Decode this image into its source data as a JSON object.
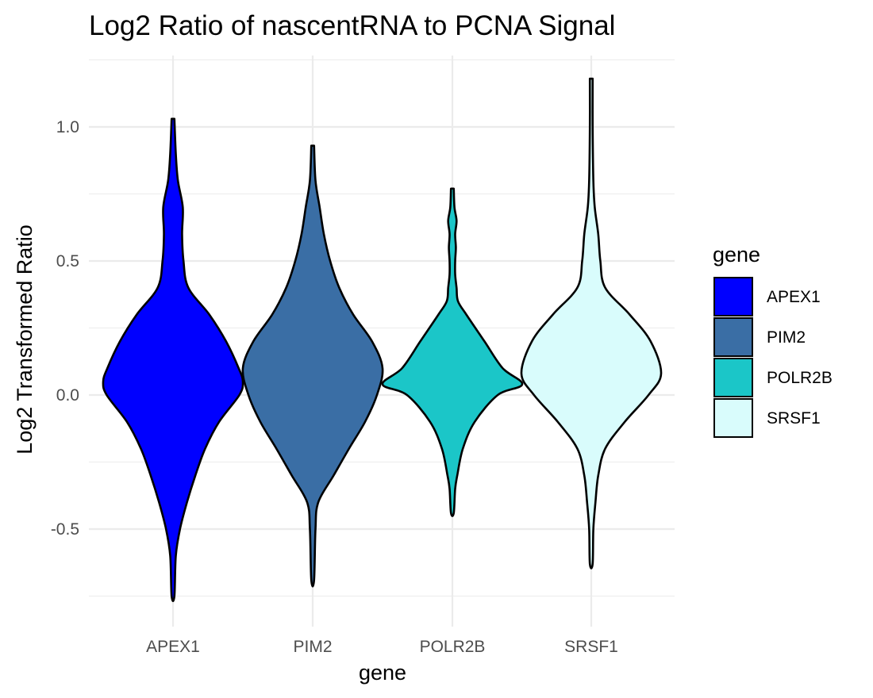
{
  "chart_data": {
    "type": "violin",
    "title": "Log2 Ratio of nascentRNA to PCNA Signal",
    "xlabel": "gene",
    "ylabel": "Log2 Transformed Ratio",
    "ylim": [
      -0.82,
      1.26
    ],
    "yticks": [
      -0.5,
      0.0,
      0.5,
      1.0
    ],
    "ytick_labels": [
      "-0.5",
      "0.0",
      "0.5",
      "1.0"
    ],
    "grid": true,
    "legend": {
      "title": "gene",
      "placement": "right"
    },
    "categories": [
      "APEX1",
      "PIM2",
      "POLR2B",
      "SRSF1"
    ],
    "series": [
      {
        "name": "APEX1",
        "color": "#0000ff",
        "min": -0.75,
        "max": 1.03,
        "density": [
          [
            -0.75,
            0.02
          ],
          [
            -0.6,
            0.04
          ],
          [
            -0.5,
            0.1
          ],
          [
            -0.4,
            0.2
          ],
          [
            -0.3,
            0.32
          ],
          [
            -0.2,
            0.46
          ],
          [
            -0.1,
            0.66
          ],
          [
            0.0,
            0.95
          ],
          [
            0.05,
            1.0
          ],
          [
            0.1,
            0.94
          ],
          [
            0.2,
            0.76
          ],
          [
            0.3,
            0.52
          ],
          [
            0.4,
            0.22
          ],
          [
            0.5,
            0.15
          ],
          [
            0.6,
            0.13
          ],
          [
            0.7,
            0.14
          ],
          [
            0.8,
            0.07
          ],
          [
            0.9,
            0.04
          ],
          [
            1.03,
            0.02
          ]
        ]
      },
      {
        "name": "PIM2",
        "color": "#3a6ea5",
        "min": -0.69,
        "max": 0.93,
        "density": [
          [
            -0.69,
            0.02
          ],
          [
            -0.5,
            0.04
          ],
          [
            -0.4,
            0.08
          ],
          [
            -0.3,
            0.3
          ],
          [
            -0.2,
            0.52
          ],
          [
            -0.1,
            0.75
          ],
          [
            0.0,
            0.92
          ],
          [
            0.1,
            1.0
          ],
          [
            0.2,
            0.85
          ],
          [
            0.3,
            0.58
          ],
          [
            0.4,
            0.38
          ],
          [
            0.5,
            0.25
          ],
          [
            0.6,
            0.16
          ],
          [
            0.7,
            0.1
          ],
          [
            0.8,
            0.04
          ],
          [
            0.93,
            0.02
          ]
        ]
      },
      {
        "name": "POLR2B",
        "color": "#1bc6c8",
        "min": -0.44,
        "max": 0.77,
        "density": [
          [
            -0.44,
            0.02
          ],
          [
            -0.35,
            0.04
          ],
          [
            -0.3,
            0.07
          ],
          [
            -0.2,
            0.15
          ],
          [
            -0.1,
            0.32
          ],
          [
            0.0,
            0.65
          ],
          [
            0.04,
            1.0
          ],
          [
            0.1,
            0.72
          ],
          [
            0.2,
            0.46
          ],
          [
            0.3,
            0.2
          ],
          [
            0.35,
            0.08
          ],
          [
            0.4,
            0.06
          ],
          [
            0.45,
            0.04
          ],
          [
            0.5,
            0.04
          ],
          [
            0.55,
            0.05
          ],
          [
            0.6,
            0.04
          ],
          [
            0.65,
            0.06
          ],
          [
            0.7,
            0.03
          ],
          [
            0.77,
            0.02
          ]
        ]
      },
      {
        "name": "SRSF1",
        "color": "#d9fcfc",
        "min": -0.63,
        "max": 1.18,
        "density": [
          [
            -0.63,
            0.02
          ],
          [
            -0.5,
            0.03
          ],
          [
            -0.4,
            0.06
          ],
          [
            -0.3,
            0.1
          ],
          [
            -0.2,
            0.2
          ],
          [
            -0.1,
            0.48
          ],
          [
            0.0,
            0.82
          ],
          [
            0.08,
            1.0
          ],
          [
            0.2,
            0.85
          ],
          [
            0.3,
            0.55
          ],
          [
            0.4,
            0.2
          ],
          [
            0.5,
            0.13
          ],
          [
            0.6,
            0.1
          ],
          [
            0.7,
            0.05
          ],
          [
            0.8,
            0.03
          ],
          [
            1.0,
            0.02
          ],
          [
            1.18,
            0.02
          ]
        ]
      }
    ]
  }
}
